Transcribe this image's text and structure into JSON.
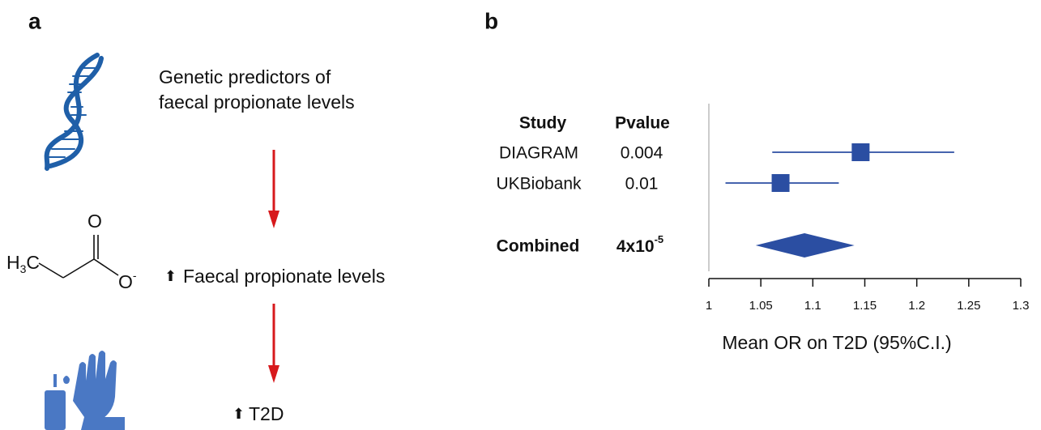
{
  "panel_a": {
    "label": "a",
    "steps": [
      [
        "Genetic predictors of",
        "faecal propionate levels"
      ],
      [
        "Faecal propionate levels"
      ],
      [
        "T2D"
      ]
    ],
    "up_arrow": "⬆",
    "chemistry": {
      "methyl": {
        "base": "H",
        "subscript": "3",
        "tail": "C"
      },
      "carbonyl": "O",
      "oxide": {
        "base": "O",
        "superscript": "-"
      }
    }
  },
  "chart_data": {
    "type": "forest",
    "panel_label": "b",
    "columns": [
      "Study",
      "Pvalue"
    ],
    "studies": [
      "DIAGRAM",
      "UKBiobank"
    ],
    "pvalues": [
      "0.004",
      "0.01"
    ],
    "estimates": [
      1.146,
      1.069
    ],
    "ci_low": [
      1.061,
      1.016
    ],
    "ci_high": [
      1.236,
      1.125
    ],
    "combined": {
      "label": "Combined",
      "pvalue": {
        "base": "4x10",
        "exponent": "-5"
      },
      "estimate": 1.092,
      "ci_low": 1.045,
      "ci_high": 1.14
    },
    "reference": 1,
    "xlim": [
      1,
      1.3
    ],
    "xticks": [
      1,
      1.05,
      1.1,
      1.15,
      1.2,
      1.25,
      1.3
    ],
    "xlabel": "Mean OR on T2D (95%C.I.)",
    "color": "#2b4ea2"
  }
}
